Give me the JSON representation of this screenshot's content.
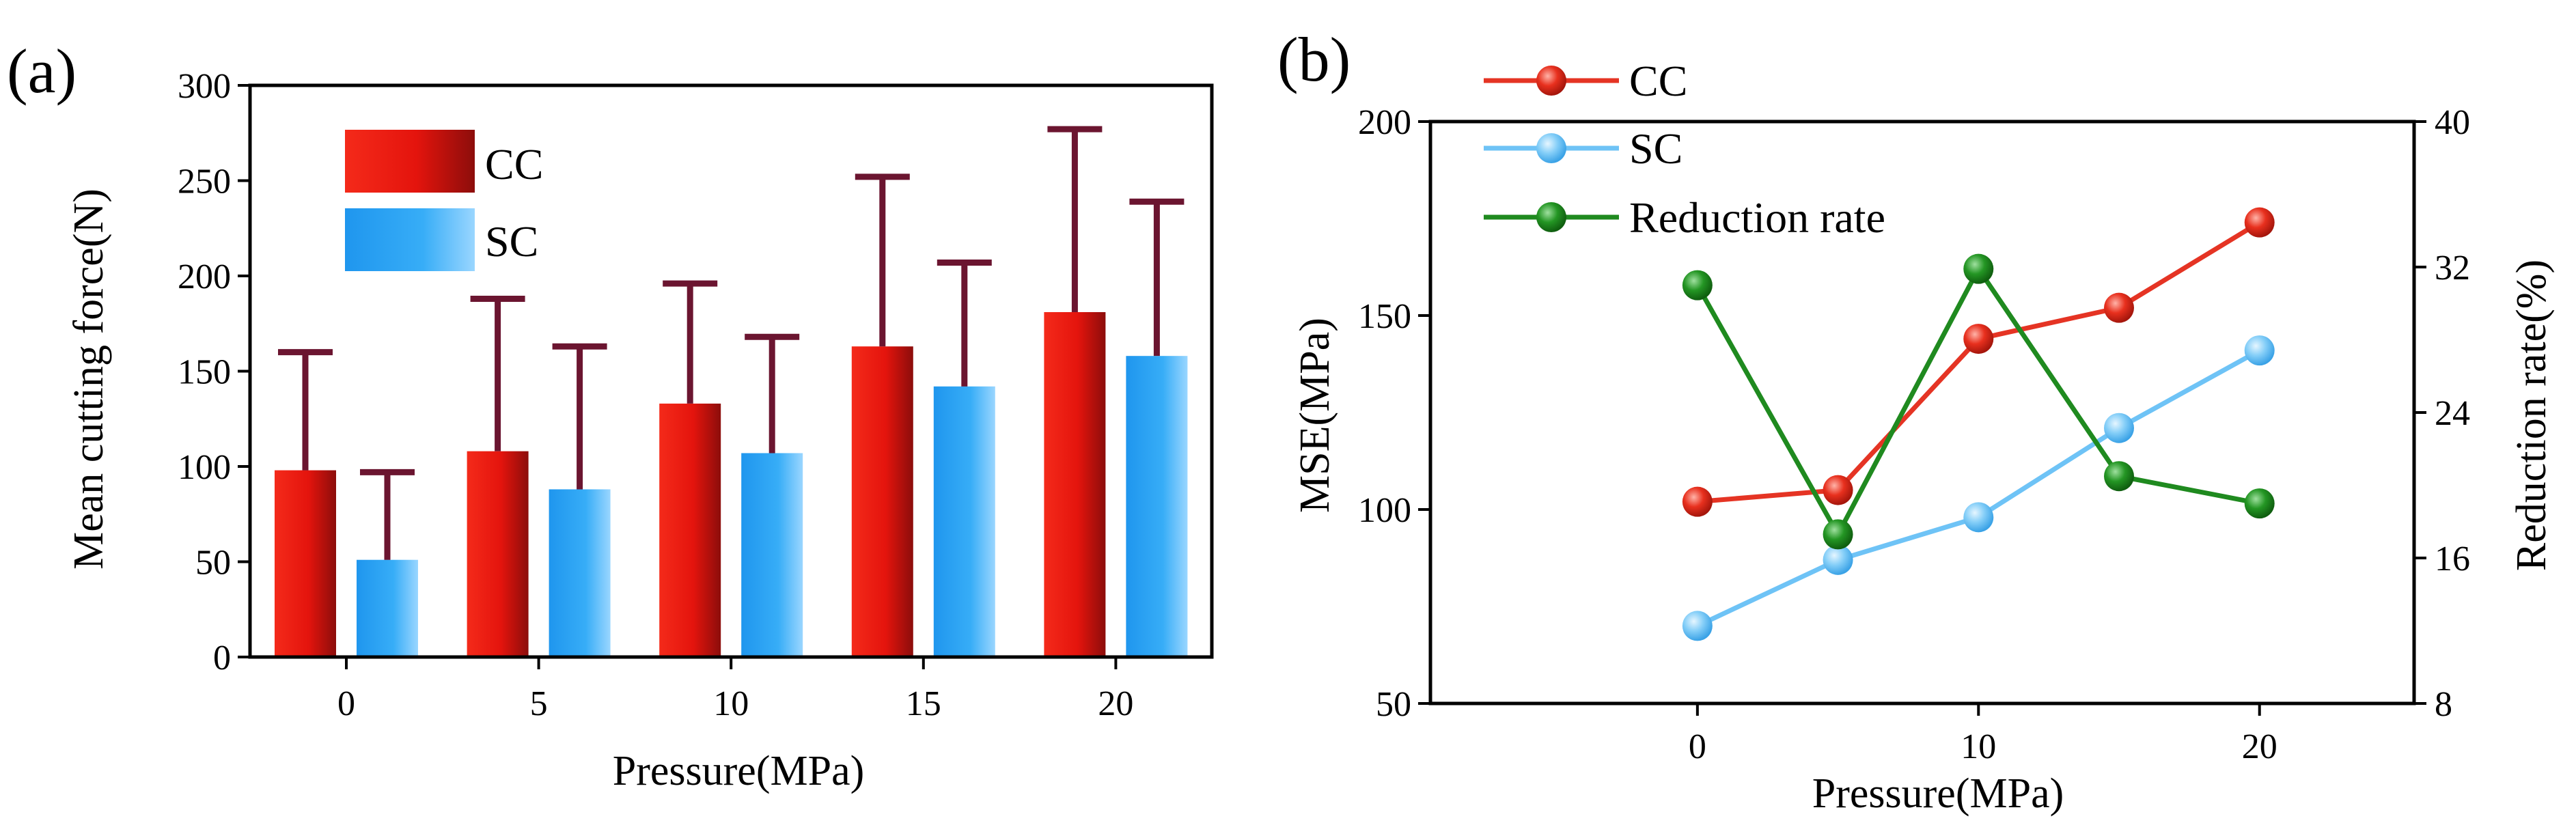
{
  "colors": {
    "cc": "#ee1a12",
    "cc_dark": "#8c0d0b",
    "sc": "#2ba4f5",
    "sc_light": "#9ad6ff",
    "error_bar": "#6b1530",
    "line_cc": "#e53424",
    "line_sc": "#6ec3f6",
    "line_rr": "#1f8a1f"
  },
  "chart_data": [
    {
      "panel_label": "(a)",
      "type": "bar",
      "categories": [
        "0",
        "5",
        "10",
        "15",
        "20"
      ],
      "xlabel": "Pressure(MPa)",
      "ylabel": "Mean cutting force(N)",
      "ylim": [
        0,
        300
      ],
      "yticks": [
        "0",
        "50",
        "100",
        "150",
        "200",
        "250",
        "300"
      ],
      "legend_position": "top-left",
      "series": [
        {
          "name": "CC",
          "values": [
            98,
            108,
            133,
            163,
            181
          ],
          "error_upper": [
            160,
            188,
            196,
            252,
            277
          ]
        },
        {
          "name": "SC",
          "values": [
            51,
            88,
            107,
            142,
            158
          ],
          "error_upper": [
            97,
            163,
            168,
            207,
            239
          ]
        }
      ]
    },
    {
      "panel_label": "(b)",
      "type": "line",
      "x": [
        0,
        5,
        10,
        15,
        20
      ],
      "xticks": [
        "0",
        "10",
        "20"
      ],
      "xlim": [
        -9.5,
        25.5
      ],
      "xlabel": "Pressure(MPa)",
      "ylabel": "MSE(MPa)",
      "ylim": [
        50,
        200
      ],
      "yticks": [
        "50",
        "100",
        "150",
        "200"
      ],
      "y2label": "Reduction rate(%)",
      "y2lim": [
        8,
        40
      ],
      "y2ticks": [
        "8",
        "16",
        "24",
        "32",
        "40"
      ],
      "legend_position": "top-left",
      "series": [
        {
          "name": "CC",
          "axis": "left",
          "values": [
            102,
            105,
            144,
            152,
            174
          ]
        },
        {
          "name": "SC",
          "axis": "left",
          "values": [
            70,
            87,
            98,
            121,
            141
          ]
        },
        {
          "name": "Reduction rate",
          "axis": "right",
          "values": [
            31,
            17.3,
            31.9,
            20.5,
            19
          ]
        }
      ]
    }
  ]
}
